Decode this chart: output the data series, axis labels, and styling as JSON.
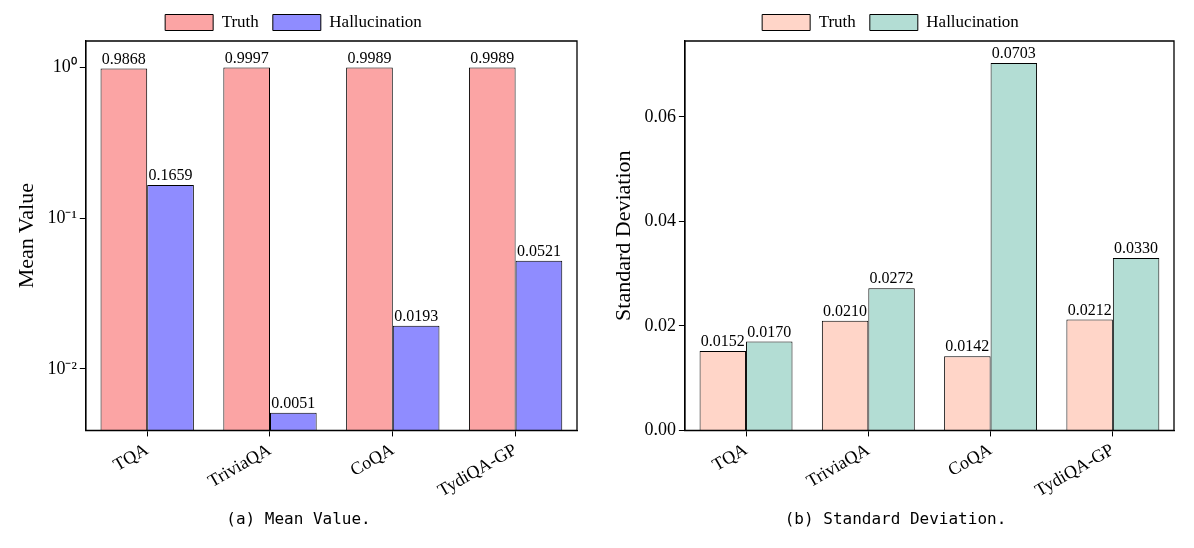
{
  "chart_data": [
    {
      "type": "bar",
      "ylabel": "Mean Value",
      "categories": [
        "TQA",
        "TriviaQA",
        "CoQA",
        "TydiQA-GP"
      ],
      "series": [
        {
          "name": "Truth",
          "color": "#fba4a4",
          "values": [
            0.9868,
            0.9997,
            0.9989,
            0.9989
          ],
          "value_labels": [
            "0.9868",
            "0.9997",
            "0.9989",
            "0.9989"
          ]
        },
        {
          "name": "Hallucination",
          "color": "#8f8cff",
          "values": [
            0.1659,
            0.0051,
            0.0193,
            0.0521
          ],
          "value_labels": [
            "0.1659",
            "0.0051",
            "0.0193",
            "0.0521"
          ]
        }
      ],
      "log": "y",
      "ylim": [
        0.0039,
        1.5
      ],
      "yticks": [
        {
          "value": 0.01,
          "label": "10⁻²"
        },
        {
          "value": 0.1,
          "label": "10⁻¹"
        },
        {
          "value": 1,
          "label": "10⁰"
        }
      ],
      "grid": false,
      "legend": "top",
      "annotations": [
        "(a) Mean Value."
      ]
    },
    {
      "type": "bar",
      "ylabel": "Standard Deviation",
      "categories": [
        "TQA",
        "TriviaQA",
        "CoQA",
        "TydiQA-GP"
      ],
      "series": [
        {
          "name": "Truth",
          "color": "#ffd5c8",
          "values": [
            0.0152,
            0.021,
            0.0142,
            0.0212
          ],
          "value_labels": [
            "0.0152",
            "0.0210",
            "0.0142",
            "0.0212"
          ]
        },
        {
          "name": "Hallucination",
          "color": "#b3ddd4",
          "values": [
            0.017,
            0.0272,
            0.0703,
            0.033
          ],
          "value_labels": [
            "0.0170",
            "0.0272",
            "0.0703",
            "0.0330"
          ]
        }
      ],
      "ylim": [
        0,
        0.0745
      ],
      "yticks": [
        {
          "value": 0,
          "label": "0.00"
        },
        {
          "value": 0.02,
          "label": "0.02"
        },
        {
          "value": 0.04,
          "label": "0.04"
        },
        {
          "value": 0.06,
          "label": "0.06"
        }
      ],
      "grid": false,
      "legend": "top",
      "annotations": [
        "(b) Standard Deviation."
      ]
    }
  ]
}
